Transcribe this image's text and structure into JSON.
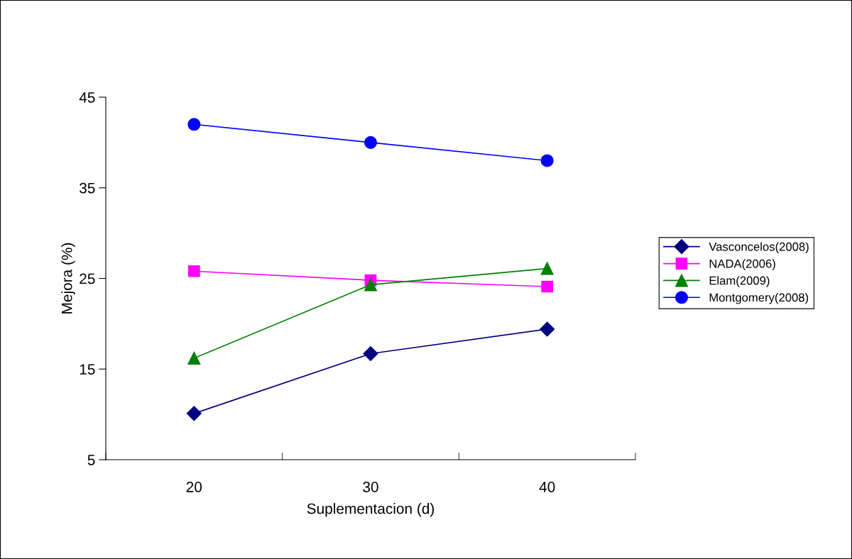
{
  "chart_data": {
    "type": "line",
    "xlabel": "Suplementacion (d)",
    "ylabel": "Mejora (%)",
    "categories": [
      "20",
      "30",
      "40"
    ],
    "series": [
      {
        "name": "Vasconcelos(2008)",
        "color": "#000080",
        "marker": "diamond",
        "values": [
          10.1,
          16.7,
          19.4
        ]
      },
      {
        "name": "NADA(2006)",
        "color": "#ff00ff",
        "marker": "square",
        "values": [
          25.8,
          24.8,
          24.1
        ]
      },
      {
        "name": "Elam(2009)",
        "color": "#008000",
        "marker": "triangle",
        "values": [
          16.2,
          24.3,
          26.1
        ]
      },
      {
        "name": "Montgomery(2008)",
        "color": "#0000ff",
        "marker": "circle",
        "values": [
          42.0,
          40.0,
          38.0
        ]
      }
    ],
    "ylim": [
      5,
      45
    ],
    "yticks": [
      5,
      15,
      25,
      35,
      45
    ],
    "grid": false,
    "legend": "right",
    "line_style": "solid"
  }
}
